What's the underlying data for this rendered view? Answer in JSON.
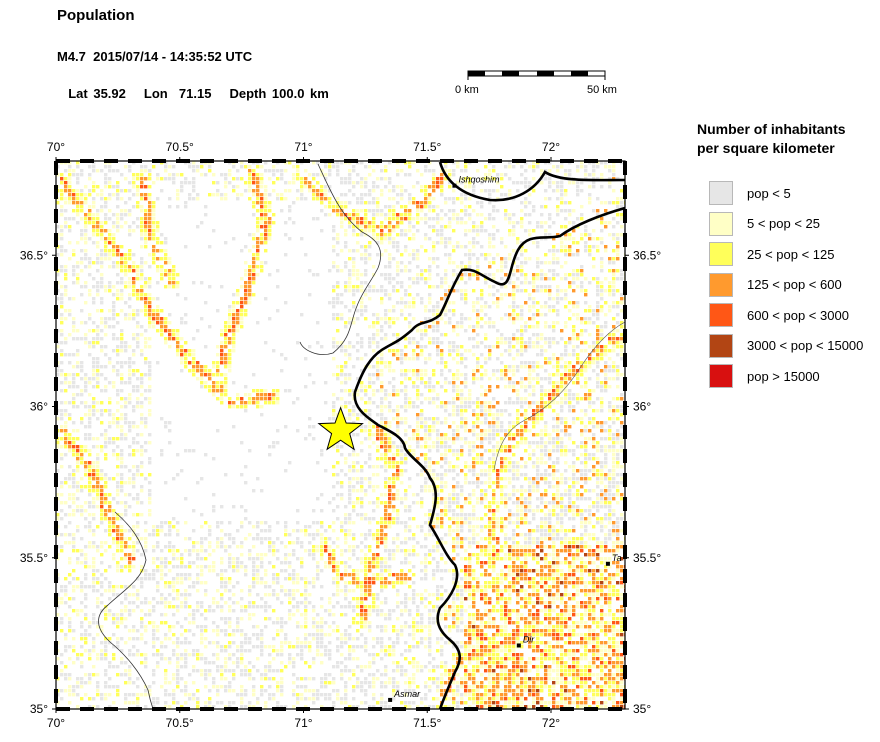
{
  "header": {
    "title": "Population",
    "event_line": "M4.7  2015/07/14 - 14:35:52 UTC",
    "lat": "Lat 35.92",
    "lon": "Lon  71.15",
    "depth": "Depth 100.0 km"
  },
  "scale_bar": {
    "left_label": "0 km",
    "right_label": "50 km"
  },
  "map": {
    "epicenter": {
      "lon": 71.15,
      "lat": 35.92,
      "color": "#ffff00"
    },
    "x_ticks": [
      "70°",
      "70.5°",
      "71°",
      "71.5°",
      "72°"
    ],
    "y_ticks": [
      "35°",
      "35.5°",
      "36°",
      "36.5°"
    ],
    "places": [
      {
        "name": "Ishqoshim",
        "lon": 71.61,
        "lat": 36.73
      },
      {
        "name": "Dir",
        "lon": 71.87,
        "lat": 35.21
      },
      {
        "name": "Asmar",
        "lon": 71.35,
        "lat": 35.03
      },
      {
        "name": "Ta",
        "lon": 72.23,
        "lat": 35.48
      }
    ]
  },
  "legend": {
    "title_line1": "Number of inhabitants",
    "title_line2": "per square kilometer",
    "items": [
      {
        "label": "pop < 5",
        "color": "#e6e6e6"
      },
      {
        "label": "5 < pop < 25",
        "color": "#ffffc6"
      },
      {
        "label": "25 < pop < 125",
        "color": "#ffff5a"
      },
      {
        "label": "125 < pop < 600",
        "color": "#ff9a2e"
      },
      {
        "label": "600 < pop < 3000",
        "color": "#ff5716"
      },
      {
        "label": "3000 < pop < 15000",
        "color": "#b24514"
      },
      {
        "label": "pop > 15000",
        "color": "#d81010"
      }
    ]
  }
}
